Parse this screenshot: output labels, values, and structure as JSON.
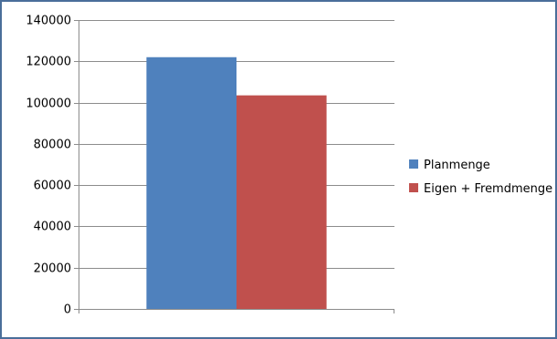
{
  "chart_data": {
    "type": "bar",
    "categories": [
      ""
    ],
    "series": [
      {
        "name": "Planmenge",
        "values": [
          122000
        ],
        "color": "#4f81bd"
      },
      {
        "name": "Eigen + Fremdmenge",
        "values": [
          103500
        ],
        "color": "#c0504d"
      }
    ],
    "yticks": [
      "0",
      "20000",
      "40000",
      "60000",
      "80000",
      "100000",
      "120000",
      "140000"
    ],
    "ylim": [
      0,
      140000
    ],
    "grid": true,
    "legend": "right",
    "title": "",
    "xlabel": "",
    "ylabel": ""
  }
}
